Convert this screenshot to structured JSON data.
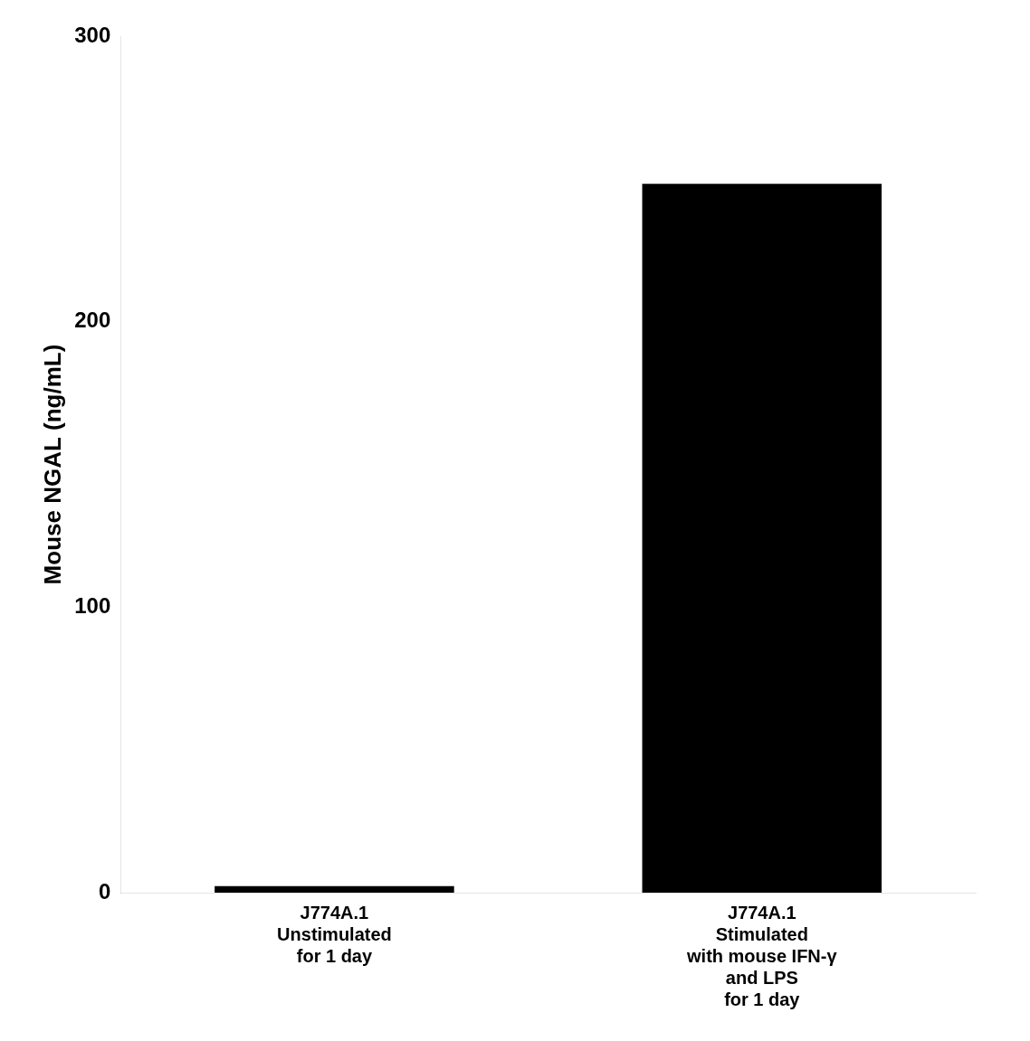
{
  "chart_data": {
    "type": "bar",
    "categories": [
      "J774A.1\nUnstimulated\nfor 1 day",
      "J774A.1\nStimulated\nwith mouse IFN-γ\nand LPS\nfor 1 day"
    ],
    "values": [
      2.3,
      248.3
    ],
    "colors": [
      "#000000",
      "#000000"
    ],
    "ylabel": "Mouse NGAL (ng/mL)",
    "ylim": [
      0,
      300
    ],
    "yticks": [
      0,
      100,
      200,
      300
    ],
    "grid": false
  }
}
